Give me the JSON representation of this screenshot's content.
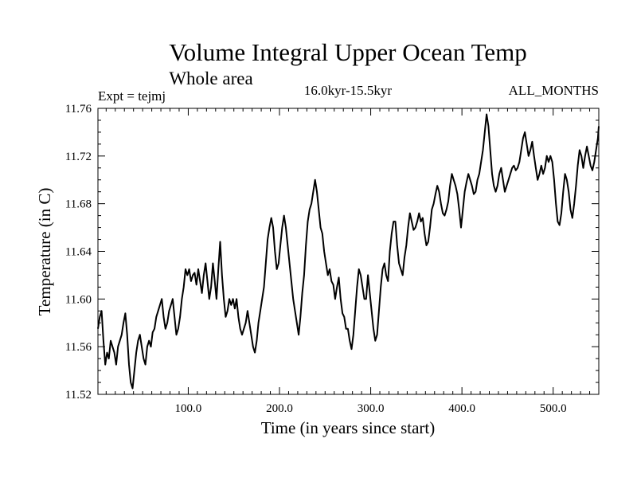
{
  "chart_data": {
    "type": "line",
    "title": "Volume Integral Upper Ocean Temp",
    "subtitle": "Whole area",
    "period_label": "16.0kyr-15.5kyr",
    "expt_label": "Expt = tejmj",
    "months_label": "ALL_MONTHS",
    "xlabel": "Time (in years since start)",
    "ylabel": "Temperature (in C)",
    "xlim": [
      1,
      550
    ],
    "ylim": [
      11.52,
      11.76
    ],
    "xticks": [
      100,
      200,
      300,
      400,
      500
    ],
    "xtick_labels": [
      "100.0",
      "200.0",
      "300.0",
      "400.0",
      "500.0"
    ],
    "yticks": [
      11.52,
      11.56,
      11.6,
      11.64,
      11.68,
      11.72,
      11.76
    ],
    "ytick_labels": [
      "11.52",
      "11.56",
      "11.60",
      "11.64",
      "11.68",
      "11.72",
      "11.76"
    ],
    "grid": false,
    "series": [
      {
        "name": "Temperature",
        "color": "#000000",
        "points": [
          [
            1,
            11.575
          ],
          [
            3,
            11.585
          ],
          [
            5,
            11.59
          ],
          [
            7,
            11.565
          ],
          [
            9,
            11.545
          ],
          [
            11,
            11.555
          ],
          [
            13,
            11.55
          ],
          [
            15,
            11.565
          ],
          [
            17,
            11.56
          ],
          [
            19,
            11.555
          ],
          [
            21,
            11.545
          ],
          [
            23,
            11.56
          ],
          [
            25,
            11.565
          ],
          [
            27,
            11.57
          ],
          [
            29,
            11.58
          ],
          [
            31,
            11.588
          ],
          [
            33,
            11.57
          ],
          [
            35,
            11.545
          ],
          [
            37,
            11.53
          ],
          [
            39,
            11.525
          ],
          [
            41,
            11.54
          ],
          [
            43,
            11.555
          ],
          [
            45,
            11.565
          ],
          [
            47,
            11.57
          ],
          [
            49,
            11.56
          ],
          [
            51,
            11.55
          ],
          [
            53,
            11.545
          ],
          [
            55,
            11.56
          ],
          [
            57,
            11.565
          ],
          [
            59,
            11.56
          ],
          [
            61,
            11.572
          ],
          [
            63,
            11.575
          ],
          [
            65,
            11.585
          ],
          [
            67,
            11.59
          ],
          [
            69,
            11.595
          ],
          [
            71,
            11.6
          ],
          [
            73,
            11.585
          ],
          [
            75,
            11.575
          ],
          [
            77,
            11.58
          ],
          [
            79,
            11.59
          ],
          [
            81,
            11.595
          ],
          [
            83,
            11.6
          ],
          [
            85,
            11.585
          ],
          [
            87,
            11.57
          ],
          [
            89,
            11.575
          ],
          [
            91,
            11.585
          ],
          [
            93,
            11.6
          ],
          [
            95,
            11.61
          ],
          [
            97,
            11.625
          ],
          [
            99,
            11.62
          ],
          [
            101,
            11.625
          ],
          [
            103,
            11.615
          ],
          [
            105,
            11.62
          ],
          [
            107,
            11.622
          ],
          [
            109,
            11.612
          ],
          [
            111,
            11.625
          ],
          [
            113,
            11.615
          ],
          [
            115,
            11.605
          ],
          [
            117,
            11.62
          ],
          [
            119,
            11.63
          ],
          [
            121,
            11.615
          ],
          [
            123,
            11.6
          ],
          [
            125,
            11.61
          ],
          [
            127,
            11.63
          ],
          [
            129,
            11.615
          ],
          [
            131,
            11.6
          ],
          [
            133,
            11.625
          ],
          [
            135,
            11.648
          ],
          [
            137,
            11.62
          ],
          [
            139,
            11.6
          ],
          [
            141,
            11.585
          ],
          [
            143,
            11.59
          ],
          [
            145,
            11.6
          ],
          [
            147,
            11.595
          ],
          [
            149,
            11.6
          ],
          [
            151,
            11.592
          ],
          [
            153,
            11.6
          ],
          [
            155,
            11.585
          ],
          [
            157,
            11.575
          ],
          [
            159,
            11.57
          ],
          [
            161,
            11.575
          ],
          [
            163,
            11.58
          ],
          [
            165,
            11.59
          ],
          [
            167,
            11.58
          ],
          [
            169,
            11.57
          ],
          [
            171,
            11.56
          ],
          [
            173,
            11.555
          ],
          [
            175,
            11.565
          ],
          [
            177,
            11.58
          ],
          [
            179,
            11.59
          ],
          [
            181,
            11.6
          ],
          [
            183,
            11.61
          ],
          [
            185,
            11.63
          ],
          [
            187,
            11.65
          ],
          [
            189,
            11.66
          ],
          [
            191,
            11.668
          ],
          [
            193,
            11.66
          ],
          [
            195,
            11.64
          ],
          [
            197,
            11.625
          ],
          [
            199,
            11.63
          ],
          [
            201,
            11.645
          ],
          [
            203,
            11.66
          ],
          [
            205,
            11.67
          ],
          [
            207,
            11.66
          ],
          [
            209,
            11.645
          ],
          [
            211,
            11.63
          ],
          [
            213,
            11.615
          ],
          [
            215,
            11.6
          ],
          [
            217,
            11.59
          ],
          [
            219,
            11.58
          ],
          [
            221,
            11.57
          ],
          [
            223,
            11.585
          ],
          [
            225,
            11.605
          ],
          [
            227,
            11.62
          ],
          [
            229,
            11.645
          ],
          [
            231,
            11.665
          ],
          [
            233,
            11.675
          ],
          [
            235,
            11.68
          ],
          [
            237,
            11.69
          ],
          [
            239,
            11.7
          ],
          [
            241,
            11.69
          ],
          [
            243,
            11.675
          ],
          [
            245,
            11.66
          ],
          [
            247,
            11.655
          ],
          [
            249,
            11.64
          ],
          [
            251,
            11.63
          ],
          [
            253,
            11.62
          ],
          [
            255,
            11.625
          ],
          [
            257,
            11.615
          ],
          [
            259,
            11.612
          ],
          [
            261,
            11.6
          ],
          [
            263,
            11.61
          ],
          [
            265,
            11.618
          ],
          [
            267,
            11.6
          ],
          [
            269,
            11.588
          ],
          [
            271,
            11.585
          ],
          [
            273,
            11.575
          ],
          [
            275,
            11.575
          ],
          [
            277,
            11.565
          ],
          [
            279,
            11.558
          ],
          [
            281,
            11.57
          ],
          [
            283,
            11.59
          ],
          [
            285,
            11.61
          ],
          [
            287,
            11.625
          ],
          [
            289,
            11.62
          ],
          [
            291,
            11.61
          ],
          [
            293,
            11.6
          ],
          [
            295,
            11.6
          ],
          [
            297,
            11.62
          ],
          [
            299,
            11.605
          ],
          [
            301,
            11.59
          ],
          [
            303,
            11.575
          ],
          [
            305,
            11.565
          ],
          [
            307,
            11.57
          ],
          [
            309,
            11.59
          ],
          [
            311,
            11.61
          ],
          [
            313,
            11.625
          ],
          [
            315,
            11.63
          ],
          [
            317,
            11.62
          ],
          [
            319,
            11.615
          ],
          [
            321,
            11.64
          ],
          [
            323,
            11.655
          ],
          [
            325,
            11.665
          ],
          [
            327,
            11.665
          ],
          [
            329,
            11.645
          ],
          [
            331,
            11.63
          ],
          [
            333,
            11.625
          ],
          [
            335,
            11.62
          ],
          [
            337,
            11.635
          ],
          [
            339,
            11.645
          ],
          [
            341,
            11.66
          ],
          [
            343,
            11.672
          ],
          [
            345,
            11.665
          ],
          [
            347,
            11.658
          ],
          [
            349,
            11.66
          ],
          [
            351,
            11.665
          ],
          [
            353,
            11.672
          ],
          [
            355,
            11.665
          ],
          [
            357,
            11.668
          ],
          [
            359,
            11.655
          ],
          [
            361,
            11.645
          ],
          [
            363,
            11.648
          ],
          [
            365,
            11.66
          ],
          [
            367,
            11.675
          ],
          [
            369,
            11.68
          ],
          [
            371,
            11.688
          ],
          [
            373,
            11.695
          ],
          [
            375,
            11.69
          ],
          [
            377,
            11.68
          ],
          [
            379,
            11.672
          ],
          [
            381,
            11.67
          ],
          [
            383,
            11.675
          ],
          [
            385,
            11.682
          ],
          [
            387,
            11.695
          ],
          [
            389,
            11.705
          ],
          [
            391,
            11.7
          ],
          [
            393,
            11.695
          ],
          [
            395,
            11.688
          ],
          [
            397,
            11.675
          ],
          [
            399,
            11.66
          ],
          [
            401,
            11.675
          ],
          [
            403,
            11.69
          ],
          [
            405,
            11.698
          ],
          [
            407,
            11.705
          ],
          [
            409,
            11.7
          ],
          [
            411,
            11.695
          ],
          [
            413,
            11.688
          ],
          [
            415,
            11.69
          ],
          [
            417,
            11.7
          ],
          [
            419,
            11.705
          ],
          [
            421,
            11.715
          ],
          [
            423,
            11.725
          ],
          [
            425,
            11.74
          ],
          [
            427,
            11.755
          ],
          [
            429,
            11.745
          ],
          [
            431,
            11.725
          ],
          [
            433,
            11.705
          ],
          [
            435,
            11.695
          ],
          [
            437,
            11.69
          ],
          [
            439,
            11.695
          ],
          [
            441,
            11.705
          ],
          [
            443,
            11.71
          ],
          [
            445,
            11.7
          ],
          [
            447,
            11.69
          ],
          [
            449,
            11.695
          ],
          [
            451,
            11.7
          ],
          [
            453,
            11.705
          ],
          [
            455,
            11.71
          ],
          [
            457,
            11.712
          ],
          [
            459,
            11.708
          ],
          [
            461,
            11.71
          ],
          [
            463,
            11.715
          ],
          [
            465,
            11.725
          ],
          [
            467,
            11.735
          ],
          [
            469,
            11.74
          ],
          [
            471,
            11.73
          ],
          [
            473,
            11.72
          ],
          [
            475,
            11.725
          ],
          [
            477,
            11.732
          ],
          [
            479,
            11.72
          ],
          [
            481,
            11.71
          ],
          [
            483,
            11.7
          ],
          [
            485,
            11.705
          ],
          [
            487,
            11.712
          ],
          [
            489,
            11.705
          ],
          [
            491,
            11.71
          ],
          [
            493,
            11.72
          ],
          [
            495,
            11.715
          ],
          [
            497,
            11.72
          ],
          [
            499,
            11.715
          ],
          [
            501,
            11.7
          ],
          [
            503,
            11.68
          ],
          [
            505,
            11.665
          ],
          [
            507,
            11.662
          ],
          [
            509,
            11.672
          ],
          [
            511,
            11.69
          ],
          [
            513,
            11.705
          ],
          [
            515,
            11.7
          ],
          [
            517,
            11.69
          ],
          [
            519,
            11.675
          ],
          [
            521,
            11.668
          ],
          [
            523,
            11.68
          ],
          [
            525,
            11.695
          ],
          [
            527,
            11.712
          ],
          [
            529,
            11.725
          ],
          [
            531,
            11.72
          ],
          [
            533,
            11.71
          ],
          [
            535,
            11.72
          ],
          [
            537,
            11.728
          ],
          [
            539,
            11.72
          ],
          [
            541,
            11.712
          ],
          [
            543,
            11.708
          ],
          [
            545,
            11.715
          ],
          [
            547,
            11.725
          ],
          [
            549,
            11.735
          ],
          [
            550,
            11.745
          ]
        ]
      }
    ]
  }
}
